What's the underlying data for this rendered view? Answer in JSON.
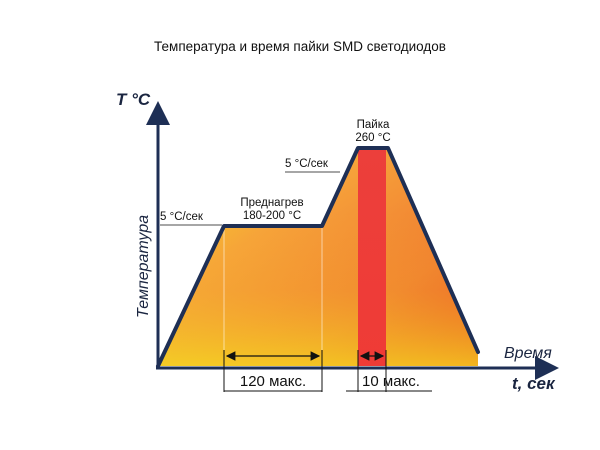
{
  "title": "Температура и время пайки SMD светодиодов",
  "axis": {
    "y_label": "T °C",
    "y_description": "Температура",
    "x_label": "t, сек",
    "x_description": "Время"
  },
  "stages": {
    "ramp_up_rate": "5 °C/сек",
    "preheat_name": "Преднагрев",
    "preheat_range": "180-200 °C",
    "ramp_to_peak_rate": "5 °C/сек",
    "peak_name": "Пайка",
    "peak_temp": "260 °C"
  },
  "durations": {
    "preheat": "120 макс.",
    "peak": "10 макс."
  },
  "colors": {
    "outline": "#1e2f55",
    "peak_band": "#ee3a36",
    "gradient_start": "#f2e020",
    "gradient_end": "#e8361f",
    "text": "#111111"
  }
}
